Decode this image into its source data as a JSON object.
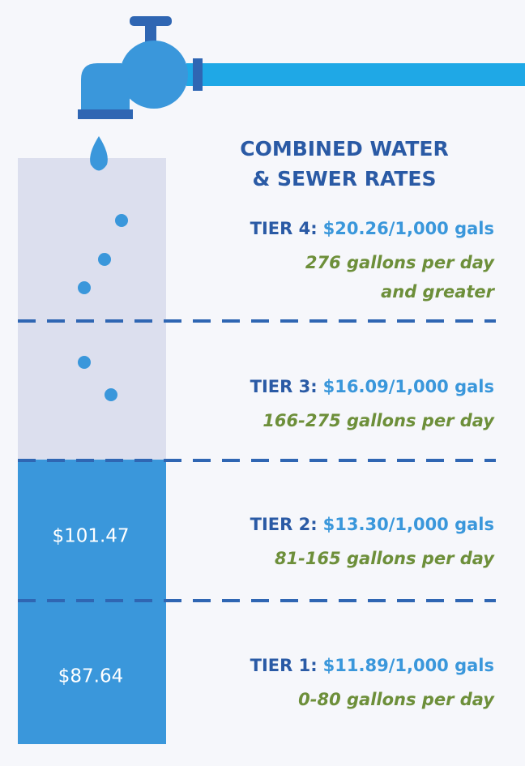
{
  "title": [
    "COMBINED WATER",
    "& SEWER RATES"
  ],
  "tiers": [
    {
      "label": "TIER 4:",
      "rate": "$20.26/1,000 gals",
      "usage": [
        "276 gallons per day",
        "and greater"
      ]
    },
    {
      "label": "TIER 3:",
      "rate": "$16.09/1,000 gals",
      "usage": [
        "166-275 gallons per day"
      ]
    },
    {
      "label": "TIER 2:",
      "rate": "$13.30/1,000 gals",
      "usage": [
        "81-165 gallons per day"
      ]
    },
    {
      "label": "TIER 1:",
      "rate": "$11.89/1,000 gals",
      "usage": [
        "0-80 gallons per day"
      ]
    }
  ],
  "bar_labels": [
    "$101.47",
    "$87.64"
  ]
}
